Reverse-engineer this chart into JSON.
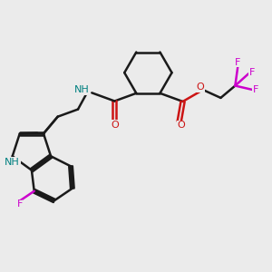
{
  "background_color": "#ebebeb",
  "bond_color": "#1a1a1a",
  "N_color": "#1414b4",
  "O_color": "#cc1414",
  "F_color": "#cc00cc",
  "NH_color": "#008080",
  "line_width": 1.8,
  "fig_size": [
    3.0,
    3.0
  ],
  "dpi": 100,
  "xlim": [
    0,
    10
  ],
  "ylim": [
    0,
    10
  ]
}
